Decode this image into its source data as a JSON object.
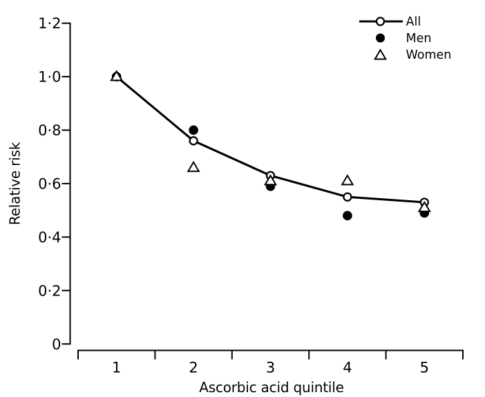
{
  "figure": {
    "background": "#ffffff",
    "foreground": "#000000"
  },
  "chart_data": {
    "type": "line",
    "title": "",
    "xlabel": "Ascorbic acid quintile",
    "ylabel": "Relative risk",
    "categories": [
      "1",
      "2",
      "3",
      "4",
      "5"
    ],
    "series": [
      {
        "name": "All",
        "marker": "open-circle",
        "connect_line": true,
        "values": [
          1.0,
          0.76,
          0.63,
          0.55,
          0.53
        ]
      },
      {
        "name": "Men",
        "marker": "filled-circle",
        "connect_line": false,
        "values": [
          1.0,
          0.8,
          0.59,
          0.48,
          0.49
        ]
      },
      {
        "name": "Women",
        "marker": "open-triangle",
        "connect_line": false,
        "values": [
          1.0,
          0.66,
          0.61,
          0.61,
          0.51
        ]
      }
    ],
    "ylim": [
      0,
      1.2
    ],
    "yticks": [
      0,
      0.2,
      0.4,
      0.6,
      0.8,
      1.0,
      1.2
    ],
    "ytick_labels": [
      "0",
      "0·2",
      "0·4",
      "0·6",
      "0·8",
      "1·0",
      "1·2"
    ],
    "xtick_labels": [
      "1",
      "2",
      "3",
      "4",
      "5"
    ],
    "grid": false,
    "legend": {
      "position": "top-right",
      "entries": [
        {
          "label": "All",
          "symbol": "line-with-open-circle"
        },
        {
          "label": "Men",
          "symbol": "filled-circle"
        },
        {
          "label": "Women",
          "symbol": "open-triangle"
        }
      ]
    }
  }
}
